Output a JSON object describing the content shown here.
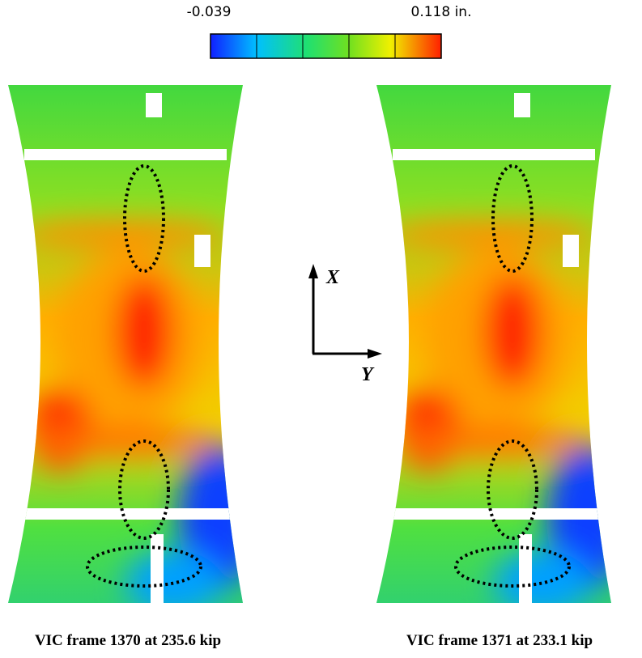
{
  "colorbar": {
    "min_label": "-0.039",
    "max_label": "0.118 in."
  },
  "axes": {
    "x_label": "X",
    "y_label": "Y"
  },
  "panels": [
    {
      "caption": "VIC frame 1370 at 235.6 kip"
    },
    {
      "caption": "VIC frame 1371 at 233.1 kip"
    }
  ]
}
